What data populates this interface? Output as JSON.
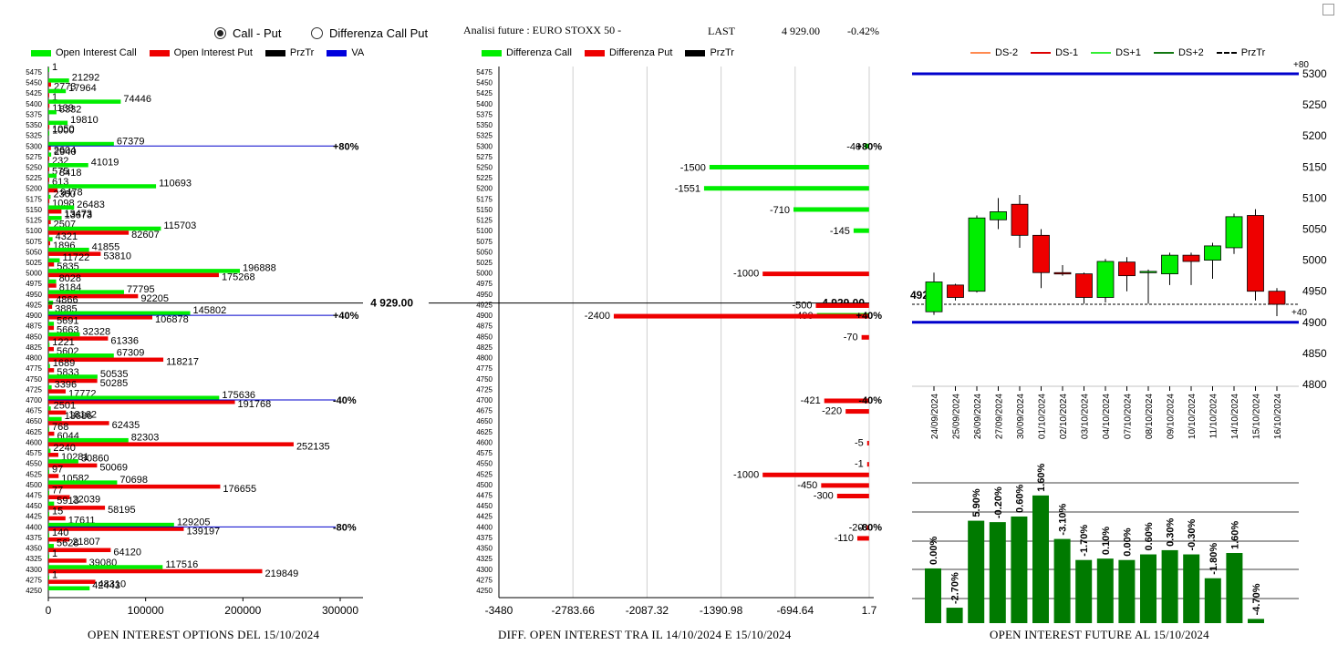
{
  "controls": {
    "radio_call_put": "Call - Put",
    "radio_diff": "Differenza Call Put",
    "selected": "call_put"
  },
  "header": {
    "title": "Analisi future : EURO STOXX 50 -",
    "last_label": "LAST",
    "last_value": "4 929.00",
    "change": "-0.42%"
  },
  "captions": {
    "left": "OPEN INTEREST OPTIONS DEL 15/10/2024",
    "middle": "DIFF. OPEN INTEREST TRA IL 14/10/2024 E 15/10/2024",
    "right": "OPEN INTEREST FUTURE AL 15/10/2024"
  },
  "legends": {
    "left": [
      {
        "label": "Open Interest Call",
        "color": "#00ee00"
      },
      {
        "label": "Open Interest Put",
        "color": "#ee0000"
      },
      {
        "label": "PrzTr",
        "color": "#000000"
      },
      {
        "label": "VA",
        "color": "#0000dd"
      }
    ],
    "middle": [
      {
        "label": "Differenza Call",
        "color": "#00ee00"
      },
      {
        "label": "Differenza Put",
        "color": "#ee0000"
      },
      {
        "label": "PrzTr",
        "color": "#000000"
      }
    ],
    "right": [
      {
        "label": "DS-2",
        "color": "#ff8a50",
        "style": "solid"
      },
      {
        "label": "DS-1",
        "color": "#dd0000",
        "style": "solid"
      },
      {
        "label": "DS+1",
        "color": "#33ee33",
        "style": "solid"
      },
      {
        "label": "DS+2",
        "color": "#117711",
        "style": "solid"
      },
      {
        "label": "PrzTr",
        "color": "#000000",
        "style": "dashed"
      }
    ]
  },
  "colors": {
    "call": "#00ee00",
    "put": "#ee0000",
    "va": "#0000cc",
    "price": "#000000",
    "bar_green": "#007a00"
  },
  "chart_data": [
    {
      "type": "bar",
      "orientation": "horizontal",
      "name": "open_interest_options",
      "strikes": [
        5475,
        5450,
        5425,
        5400,
        5375,
        5350,
        5325,
        5300,
        5275,
        5250,
        5225,
        5200,
        5175,
        5150,
        5125,
        5100,
        5075,
        5050,
        5025,
        5000,
        4975,
        4950,
        4925,
        4900,
        4875,
        4850,
        4825,
        4800,
        4775,
        4750,
        4725,
        4700,
        4675,
        4650,
        4625,
        4600,
        4575,
        4550,
        4525,
        4500,
        4475,
        4450,
        4425,
        4400,
        4375,
        4350,
        4325,
        4300,
        4275,
        4250
      ],
      "series": [
        {
          "name": "Open Interest Call",
          "values": [
            1,
            21292,
            17964,
            74446,
            8332,
            19810,
            1000,
            67379,
            2940,
            41019,
            8418,
            110693,
            2300,
            26483,
            13673,
            115703,
            4321,
            41855,
            11722,
            196888,
            8028,
            77795,
            4866,
            145802,
            5691,
            32328,
            1221,
            67309,
            1689,
            50535,
            3396,
            175636,
            2501,
            13686,
            768,
            82303,
            2240,
            30860,
            97,
            70698,
            77,
            5913,
            15,
            129205,
            140,
            5628,
            1,
            117516,
            1,
            42443
          ]
        },
        {
          "name": "Open Interest Put",
          "values": [
            0,
            2773,
            1,
            1139,
            0,
            1050,
            0,
            2604,
            232,
            575,
            613,
            9478,
            1098,
            13473,
            2507,
            82607,
            1896,
            53810,
            5835,
            175268,
            8184,
            92205,
            3885,
            106878,
            5663,
            61336,
            5602,
            118217,
            5833,
            50285,
            17772,
            191768,
            18162,
            62435,
            6044,
            252135,
            10281,
            50069,
            10582,
            176655,
            22039,
            58195,
            17611,
            139197,
            21807,
            64120,
            39080,
            219849,
            48310,
            0
          ]
        }
      ],
      "price_level": {
        "value": 4929,
        "label": "4 929.00"
      },
      "va_levels": [
        {
          "strike": 5300,
          "label": "+80%"
        },
        {
          "strike": 4900,
          "label": "+40%"
        },
        {
          "strike": 4700,
          "label": "-40%"
        },
        {
          "strike": 4400,
          "label": "-80%"
        }
      ],
      "xlim": [
        0,
        300000
      ],
      "xticks": [
        "0",
        "100000",
        "200000",
        "300000"
      ]
    },
    {
      "type": "bar",
      "orientation": "horizontal",
      "name": "diff_open_interest",
      "strikes": [
        5475,
        5450,
        5425,
        5400,
        5375,
        5350,
        5325,
        5300,
        5275,
        5250,
        5225,
        5200,
        5175,
        5150,
        5125,
        5100,
        5075,
        5050,
        5025,
        5000,
        4975,
        4950,
        4925,
        4900,
        4875,
        4850,
        4825,
        4800,
        4775,
        4750,
        4725,
        4700,
        4675,
        4650,
        4625,
        4600,
        4575,
        4550,
        4525,
        4500,
        4475,
        4450,
        4425,
        4400,
        4375,
        4350,
        4325,
        4300,
        4275,
        4250
      ],
      "bars": [
        {
          "strike": 5300,
          "series": "call",
          "value": -40
        },
        {
          "strike": 5250,
          "series": "call",
          "value": -1500
        },
        {
          "strike": 5200,
          "series": "call",
          "value": -1551
        },
        {
          "strike": 5150,
          "series": "call",
          "value": -710
        },
        {
          "strike": 5100,
          "series": "call",
          "value": -145
        },
        {
          "strike": 5000,
          "series": "put",
          "value": -1000
        },
        {
          "strike": 4925,
          "series": "put",
          "value": -500
        },
        {
          "strike": 4900,
          "series": "call",
          "value": -490
        },
        {
          "strike": 4900,
          "series": "put",
          "value": -2400
        },
        {
          "strike": 4850,
          "series": "put",
          "value": -70
        },
        {
          "strike": 4700,
          "series": "put",
          "value": -421
        },
        {
          "strike": 4675,
          "series": "put",
          "value": -220
        },
        {
          "strike": 4600,
          "series": "put",
          "value": -5
        },
        {
          "strike": 4550,
          "series": "put",
          "value": -1
        },
        {
          "strike": 4525,
          "series": "put",
          "value": -1000
        },
        {
          "strike": 4500,
          "series": "put",
          "value": -450
        },
        {
          "strike": 4475,
          "series": "put",
          "value": -300
        },
        {
          "strike": 4400,
          "series": "put",
          "value": -20
        },
        {
          "strike": 4375,
          "series": "put",
          "value": -110
        }
      ],
      "price_level": {
        "value": 4929,
        "label": "4 929.00"
      },
      "pct_labels": [
        {
          "strike": 5300,
          "label": "+80%"
        },
        {
          "strike": 4900,
          "label": "+40%"
        },
        {
          "strike": 4700,
          "label": "-40%"
        },
        {
          "strike": 4400,
          "label": "-80%"
        }
      ],
      "xlim": [
        -3480,
        1.7
      ],
      "xticks": [
        "-3480",
        "-2783.66",
        "-2087.32",
        "-1390.98",
        "-694.64",
        "1.7"
      ]
    },
    {
      "type": "candlestick",
      "name": "future_daily",
      "dates": [
        "24/09/2024",
        "25/09/2024",
        "26/09/2024",
        "27/09/2024",
        "30/09/2024",
        "01/10/2024",
        "02/10/2024",
        "03/10/2024",
        "04/10/2024",
        "07/10/2024",
        "08/10/2024",
        "09/10/2024",
        "10/10/2024",
        "11/10/2024",
        "14/10/2024",
        "15/10/2024",
        "16/10/2024"
      ],
      "candles": [
        {
          "o": 4917,
          "h": 4980,
          "l": 4912,
          "c": 4965
        },
        {
          "o": 4960,
          "h": 4962,
          "l": 4935,
          "c": 4940
        },
        {
          "o": 4950,
          "h": 5072,
          "l": 4948,
          "c": 5068
        },
        {
          "o": 5065,
          "h": 5100,
          "l": 5050,
          "c": 5078
        },
        {
          "o": 5090,
          "h": 5105,
          "l": 5020,
          "c": 5040
        },
        {
          "o": 5040,
          "h": 5050,
          "l": 4955,
          "c": 4980
        },
        {
          "o": 4980,
          "h": 4992,
          "l": 4975,
          "c": 4978
        },
        {
          "o": 4978,
          "h": 4980,
          "l": 4930,
          "c": 4940
        },
        {
          "o": 4940,
          "h": 5002,
          "l": 4932,
          "c": 4998
        },
        {
          "o": 4997,
          "h": 5005,
          "l": 4950,
          "c": 4975
        },
        {
          "o": 4980,
          "h": 4985,
          "l": 4930,
          "c": 4982
        },
        {
          "o": 4978,
          "h": 5012,
          "l": 4960,
          "c": 5008
        },
        {
          "o": 5008,
          "h": 5012,
          "l": 4960,
          "c": 4998
        },
        {
          "o": 5000,
          "h": 5028,
          "l": 4970,
          "c": 5023
        },
        {
          "o": 5020,
          "h": 5075,
          "l": 5010,
          "c": 5070
        },
        {
          "o": 5072,
          "h": 5082,
          "l": 4935,
          "c": 4950
        },
        {
          "o": 4950,
          "h": 4955,
          "l": 4910,
          "c": 4929
        }
      ],
      "price_level": {
        "value": 4929,
        "label": "4929"
      },
      "upper_band": {
        "value": 5300,
        "label": "+80"
      },
      "lower_band": {
        "value": 4900,
        "label": "+40"
      },
      "ylim": [
        4800,
        5300
      ],
      "yticks": [
        "5300",
        "5250",
        "5200",
        "5150",
        "5100",
        "5050",
        "5000",
        "4950",
        "4900",
        "4850",
        "4800"
      ]
    },
    {
      "type": "bar",
      "name": "open_interest_future_change",
      "categories": [
        "24/09/2024",
        "25/09/2024",
        "26/09/2024",
        "27/09/2024",
        "30/09/2024",
        "01/10/2024",
        "02/10/2024",
        "03/10/2024",
        "04/10/2024",
        "07/10/2024",
        "08/10/2024",
        "09/10/2024",
        "10/10/2024",
        "11/10/2024",
        "14/10/2024",
        "15/10/2024",
        "16/10/2024"
      ],
      "labels": [
        "0.00%",
        "-2.70%",
        "5.90%",
        "-0.20%",
        "0.60%",
        "1.60%",
        "-3.10%",
        "-1.70%",
        "0.10%",
        "0.00%",
        "0.60%",
        "0.30%",
        "-0.30%",
        "-1.80%",
        "1.60%",
        "-4.70%"
      ],
      "values": [
        0.0,
        -2.7,
        5.9,
        -0.2,
        0.6,
        1.6,
        -3.1,
        -1.7,
        0.1,
        0.0,
        0.6,
        0.3,
        -0.3,
        -1.8,
        1.6,
        -4.7
      ],
      "bar_levels": [
        0.39,
        0.11,
        0.73,
        0.72,
        0.76,
        0.91,
        0.6,
        0.45,
        0.46,
        0.45,
        0.49,
        0.52,
        0.49,
        0.32,
        0.5,
        0.03
      ]
    }
  ]
}
